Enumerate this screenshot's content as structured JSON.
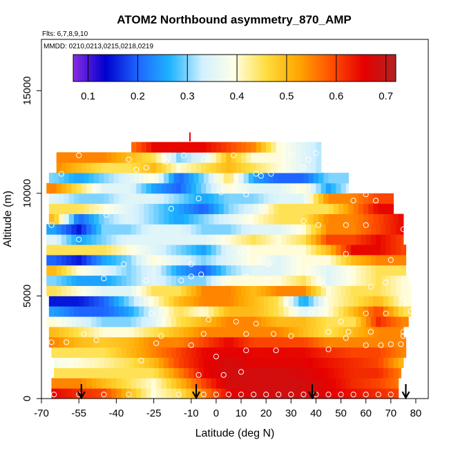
{
  "chart_data": {
    "type": "heatmap",
    "title": "ATOM2 Northbound asymmetry_870_AMP",
    "flights_label": "Flts: 6,7,8,9,10",
    "dates_label": "MMDD: 0210,0213,0215,0218,0219",
    "xlabel": "Latitude (deg N)",
    "ylabel": "Altitude (m)",
    "xlim": [
      -70,
      85
    ],
    "ylim": [
      0,
      17500
    ],
    "x_ticks": [
      -70,
      -55,
      -40,
      -25,
      -10,
      0,
      10,
      20,
      30,
      40,
      50,
      60,
      70,
      80
    ],
    "y_ticks": [
      0,
      5000,
      10000,
      15000
    ],
    "colorbar": {
      "range": [
        0.07,
        0.72
      ],
      "ticks": [
        0.1,
        0.2,
        0.3,
        0.4,
        0.5,
        0.6,
        0.7
      ],
      "tick_labels": [
        "0.1",
        "0.2",
        "0.3",
        "0.4",
        "0.5",
        "0.6",
        "0.7"
      ],
      "colors": [
        "#8a2be2",
        "#0000cd",
        "#1e64ff",
        "#1eb4ff",
        "#d2f0ff",
        "#ffffe6",
        "#ffdc3c",
        "#ffa500",
        "#ff5000",
        "#e60000",
        "#b22222"
      ]
    },
    "altitude_bins_m": [
      250,
      750,
      1250,
      1750,
      2250,
      2750,
      3250,
      3750,
      4250,
      4750,
      5250,
      5750,
      6250,
      6750,
      7250,
      7750,
      8250,
      8750,
      9250,
      9750,
      10250,
      10750,
      11250,
      11750,
      12250
    ],
    "bin_ranges": [
      [
        -66,
        73
      ],
      [
        -66,
        73
      ],
      [
        -65,
        74
      ],
      [
        -65,
        75
      ],
      [
        -66,
        76
      ],
      [
        -67,
        76
      ],
      [
        -67,
        75
      ],
      [
        -68,
        77
      ],
      [
        -67,
        78
      ],
      [
        -67,
        78
      ],
      [
        -68,
        78
      ],
      [
        -68,
        77
      ],
      [
        -68,
        76
      ],
      [
        -68,
        76
      ],
      [
        -68,
        76
      ],
      [
        -68,
        75
      ],
      [
        -68,
        75
      ],
      [
        -67,
        75
      ],
      [
        -67,
        71
      ],
      [
        -67,
        71
      ],
      [
        -68,
        53
      ],
      [
        -67,
        53
      ],
      [
        -64,
        42
      ],
      [
        -64,
        42
      ],
      [
        -34,
        42
      ]
    ],
    "control_points": [
      {
        "latitude": -65,
        "values": [
          0.65,
          0.55,
          0.45,
          0.38,
          0.45,
          0.55,
          0.5,
          0.4,
          0.25,
          0.15,
          0.45,
          0.3,
          0.5,
          0.2,
          0.45,
          0.35,
          0.25,
          0.5,
          0.45,
          0.35,
          0.55,
          0.3,
          0.55,
          0.55,
          0.55
        ]
      },
      {
        "latitude": -55,
        "values": [
          0.62,
          0.55,
          0.45,
          0.4,
          0.45,
          0.5,
          0.45,
          0.35,
          0.2,
          0.15,
          0.4,
          0.25,
          0.4,
          0.15,
          0.45,
          0.25,
          0.15,
          0.2,
          0.45,
          0.3,
          0.45,
          0.25,
          0.5,
          0.55,
          0.55
        ]
      },
      {
        "latitude": -45,
        "values": [
          0.6,
          0.5,
          0.45,
          0.42,
          0.45,
          0.48,
          0.4,
          0.3,
          0.2,
          0.2,
          0.35,
          0.25,
          0.35,
          0.25,
          0.45,
          0.3,
          0.3,
          0.3,
          0.4,
          0.3,
          0.35,
          0.3,
          0.45,
          0.55,
          0.55
        ]
      },
      {
        "latitude": -35,
        "values": [
          0.5,
          0.45,
          0.45,
          0.45,
          0.5,
          0.5,
          0.4,
          0.3,
          0.25,
          0.3,
          0.35,
          0.3,
          0.3,
          0.3,
          0.4,
          0.35,
          0.3,
          0.35,
          0.35,
          0.35,
          0.35,
          0.35,
          0.45,
          0.5,
          0.55
        ]
      },
      {
        "latitude": -25,
        "values": [
          0.4,
          0.4,
          0.45,
          0.5,
          0.55,
          0.55,
          0.45,
          0.35,
          0.35,
          0.4,
          0.45,
          0.35,
          0.35,
          0.4,
          0.35,
          0.35,
          0.35,
          0.3,
          0.3,
          0.35,
          0.25,
          0.4,
          0.5,
          0.45,
          0.65
        ]
      },
      {
        "latitude": -15,
        "values": [
          0.45,
          0.5,
          0.55,
          0.6,
          0.6,
          0.55,
          0.5,
          0.45,
          0.45,
          0.5,
          0.45,
          0.3,
          0.25,
          0.35,
          0.3,
          0.35,
          0.35,
          0.25,
          0.25,
          0.3,
          0.2,
          0.2,
          0.4,
          0.3,
          0.65
        ]
      },
      {
        "latitude": -5,
        "values": [
          0.55,
          0.6,
          0.65,
          0.65,
          0.65,
          0.6,
          0.55,
          0.5,
          0.4,
          0.55,
          0.55,
          0.3,
          0.2,
          0.3,
          0.25,
          0.35,
          0.3,
          0.3,
          0.2,
          0.25,
          0.3,
          0.3,
          0.45,
          0.35,
          0.65
        ]
      },
      {
        "latitude": 5,
        "values": [
          0.65,
          0.68,
          0.68,
          0.68,
          0.66,
          0.65,
          0.55,
          0.55,
          0.5,
          0.55,
          0.55,
          0.4,
          0.3,
          0.35,
          0.35,
          0.4,
          0.3,
          0.35,
          0.3,
          0.3,
          0.4,
          0.45,
          0.5,
          0.5,
          0.6
        ]
      },
      {
        "latitude": 15,
        "values": [
          0.68,
          0.68,
          0.68,
          0.66,
          0.65,
          0.6,
          0.55,
          0.55,
          0.5,
          0.5,
          0.5,
          0.4,
          0.35,
          0.4,
          0.4,
          0.45,
          0.35,
          0.4,
          0.35,
          0.3,
          0.35,
          0.25,
          0.45,
          0.4,
          0.55
        ]
      },
      {
        "latitude": 25,
        "values": [
          0.68,
          0.68,
          0.68,
          0.66,
          0.65,
          0.6,
          0.55,
          0.5,
          0.45,
          0.45,
          0.55,
          0.4,
          0.35,
          0.35,
          0.4,
          0.4,
          0.35,
          0.45,
          0.45,
          0.35,
          0.35,
          0.2,
          0.4,
          0.4,
          0.4
        ]
      },
      {
        "latitude": 35,
        "values": [
          0.68,
          0.68,
          0.67,
          0.66,
          0.65,
          0.6,
          0.5,
          0.5,
          0.35,
          0.25,
          0.55,
          0.45,
          0.4,
          0.4,
          0.4,
          0.45,
          0.4,
          0.45,
          0.45,
          0.35,
          0.4,
          0.2,
          0.35,
          0.35,
          0.35
        ]
      },
      {
        "latitude": 45,
        "values": [
          0.66,
          0.66,
          0.65,
          0.64,
          0.62,
          0.55,
          0.45,
          0.45,
          0.4,
          0.4,
          0.4,
          0.35,
          0.35,
          0.4,
          0.5,
          0.6,
          0.55,
          0.55,
          0.45,
          0.55,
          0.25,
          0.3,
          0.3,
          0.3,
          0.3
        ]
      },
      {
        "latitude": 55,
        "values": [
          0.64,
          0.62,
          0.62,
          0.62,
          0.6,
          0.55,
          0.5,
          0.45,
          0.5,
          0.45,
          0.45,
          0.4,
          0.4,
          0.5,
          0.65,
          0.6,
          0.55,
          0.55,
          0.55,
          0.55,
          0.35,
          0.3,
          0.3,
          0.3,
          0.3
        ]
      },
      {
        "latitude": 65,
        "values": [
          0.62,
          0.6,
          0.62,
          0.6,
          0.6,
          0.55,
          0.55,
          0.62,
          0.6,
          0.5,
          0.45,
          0.45,
          0.45,
          0.55,
          0.65,
          0.65,
          0.6,
          0.6,
          0.65,
          0.6,
          0.4,
          0.3,
          0.3,
          0.3,
          0.3
        ]
      },
      {
        "latitude": 75,
        "values": [
          0.6,
          0.55,
          0.55,
          0.5,
          0.55,
          0.55,
          0.55,
          0.55,
          0.45,
          0.4,
          0.4,
          0.4,
          0.45,
          0.55,
          0.6,
          0.6,
          0.65,
          0.65,
          0.65,
          0.6,
          0.4,
          0.3,
          0.3,
          0.3,
          0.3
        ]
      }
    ],
    "arrows_latitude": [
      -54,
      -8,
      38.5,
      76
    ],
    "red_marker": {
      "latitude": -10.5,
      "altitude_m": 12700
    },
    "sample_points": [
      [
        -65,
        200
      ],
      [
        -55,
        200
      ],
      [
        -45,
        200
      ],
      [
        -35,
        200
      ],
      [
        -25,
        200
      ],
      [
        -15,
        200
      ],
      [
        -5,
        200
      ],
      [
        0,
        200
      ],
      [
        5,
        200
      ],
      [
        10,
        200
      ],
      [
        15,
        200
      ],
      [
        20,
        200
      ],
      [
        25,
        200
      ],
      [
        30,
        200
      ],
      [
        35,
        200
      ],
      [
        40,
        200
      ],
      [
        45,
        200
      ],
      [
        50,
        200
      ],
      [
        55,
        200
      ],
      [
        60,
        200
      ],
      [
        65,
        200
      ],
      [
        70,
        200
      ],
      [
        -7,
        1150
      ],
      [
        3,
        1150
      ],
      [
        10,
        1300
      ],
      [
        -30,
        1850
      ],
      [
        0,
        2050
      ],
      [
        12,
        2350
      ],
      [
        24,
        2350
      ],
      [
        45,
        2400
      ],
      [
        -66,
        2750
      ],
      [
        -60,
        2750
      ],
      [
        -48,
        2850
      ],
      [
        -24,
        2700
      ],
      [
        -10,
        2600
      ],
      [
        52,
        2950
      ],
      [
        60,
        2600
      ],
      [
        66,
        2600
      ],
      [
        70,
        2650
      ],
      [
        74,
        2650
      ],
      [
        75,
        3050
      ],
      [
        -53,
        3150
      ],
      [
        -22,
        3050
      ],
      [
        -5,
        3150
      ],
      [
        12,
        3150
      ],
      [
        23,
        3150
      ],
      [
        30,
        3050
      ],
      [
        45,
        3250
      ],
      [
        53,
        3250
      ],
      [
        62,
        3250
      ],
      [
        75,
        3250
      ],
      [
        -26,
        4150
      ],
      [
        -3,
        3850
      ],
      [
        8,
        3750
      ],
      [
        16,
        3650
      ],
      [
        38,
        4150
      ],
      [
        50,
        3750
      ],
      [
        60,
        4150
      ],
      [
        68,
        4150
      ],
      [
        78,
        4250
      ],
      [
        -45,
        5850
      ],
      [
        -28,
        5750
      ],
      [
        -14,
        5750
      ],
      [
        -10,
        5950
      ],
      [
        -6,
        6050
      ],
      [
        5,
        5850
      ],
      [
        12,
        5950
      ],
      [
        20,
        5750
      ],
      [
        43,
        5550
      ],
      [
        62,
        5450
      ],
      [
        68,
        5650
      ],
      [
        75,
        4850
      ],
      [
        -55,
        7750
      ],
      [
        -37,
        6550
      ],
      [
        -10,
        6550
      ],
      [
        10,
        7150
      ],
      [
        21,
        6550
      ],
      [
        40,
        6650
      ],
      [
        52,
        7050
      ],
      [
        70,
        6750
      ],
      [
        80,
        6850
      ],
      [
        -66,
        8450
      ],
      [
        -44,
        8950
      ],
      [
        -18,
        9250
      ],
      [
        -7,
        9750
      ],
      [
        2,
        10050
      ],
      [
        12,
        9950
      ],
      [
        35,
        8650
      ],
      [
        41,
        8450
      ],
      [
        52,
        8450
      ],
      [
        60,
        8450
      ],
      [
        75,
        8250
      ],
      [
        82,
        8750
      ],
      [
        -62,
        10950
      ],
      [
        -48,
        10250
      ],
      [
        -32,
        11150
      ],
      [
        -28,
        11250
      ],
      [
        -20,
        11550
      ],
      [
        -5,
        11650
      ],
      [
        16,
        10950
      ],
      [
        22,
        10950
      ],
      [
        30,
        11850
      ],
      [
        37,
        11650
      ],
      [
        55,
        9650
      ],
      [
        60,
        9950
      ],
      [
        64,
        9650
      ],
      [
        -55,
        11850
      ],
      [
        -35,
        11650
      ],
      [
        -13,
        11850
      ],
      [
        7,
        11850
      ],
      [
        18,
        10850
      ],
      [
        35,
        11250
      ],
      [
        40,
        11950
      ]
    ]
  }
}
